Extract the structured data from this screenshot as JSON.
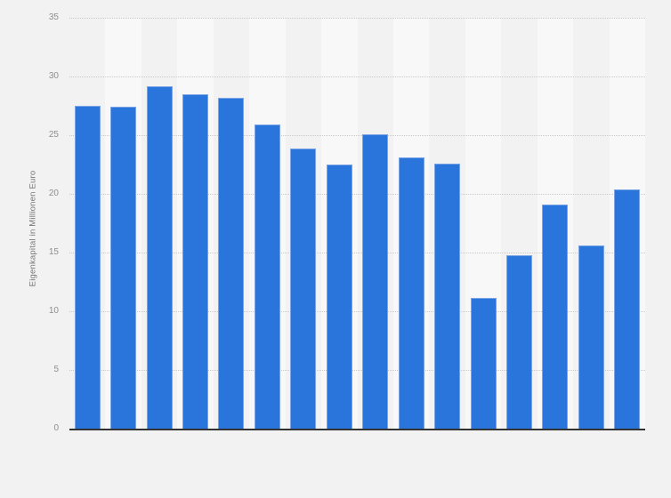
{
  "page": {
    "background_color": "#f2f2f2"
  },
  "chart_data": {
    "type": "bar",
    "title": "",
    "xlabel": "",
    "ylabel": "Eigenkapital in Millionen Euro",
    "categories": [
      "",
      "",
      "",
      "",
      "",
      "",
      "",
      "",
      "",
      "",
      "",
      "",
      "",
      "",
      "",
      ""
    ],
    "values": [
      27.5,
      27.4,
      29.2,
      28.5,
      28.2,
      25.9,
      23.9,
      22.5,
      25.1,
      23.1,
      22.6,
      11.1,
      14.8,
      19.1,
      15.6,
      20.4
    ],
    "ylim": [
      0,
      35
    ],
    "y_ticks": [
      0,
      5,
      10,
      15,
      20,
      25,
      30,
      35
    ],
    "x_tick_labels_visible": false,
    "grid": "horizontal-dotted",
    "legend": "none",
    "background_stripes": "alternating vertical column stripes",
    "colors": {
      "bar_fill": "#2a75dc",
      "bar_border": "#7aa4e6",
      "stripe_light": "#f8f8f9",
      "gridline": "#c9c9c9",
      "axis_line": "#333333",
      "tick_label": "#8e8e8e",
      "axis_title": "#757575",
      "background": "#f2f2f2"
    }
  }
}
